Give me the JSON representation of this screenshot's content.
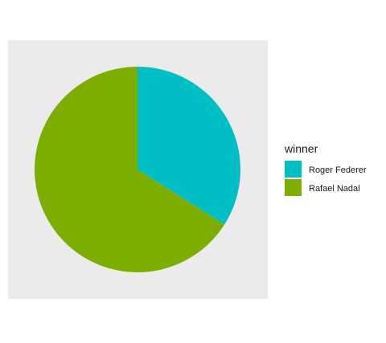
{
  "chart_data": {
    "type": "pie",
    "legend_title": "winner",
    "legend_position": "right",
    "slices": [
      {
        "name": "Roger Federer",
        "value": 34,
        "color": "#00BFC4"
      },
      {
        "name": "Rafael Nadal",
        "value": 66,
        "color": "#7CAE00"
      }
    ],
    "panel_background": "#EBEBEB",
    "start_angle": "12 o'clock",
    "direction": "clockwise"
  }
}
